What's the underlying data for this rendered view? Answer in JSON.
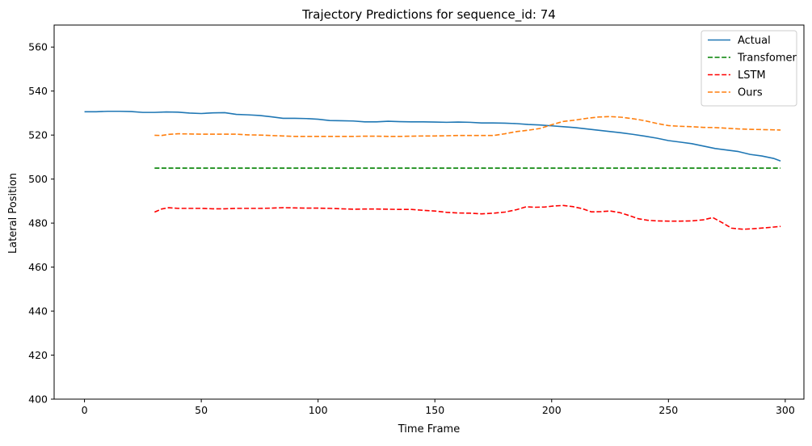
{
  "chart_data": {
    "type": "line",
    "title": "Trajectory Predictions for sequence_id: 74",
    "xlabel": "Time Frame",
    "ylabel": "Lateral Position",
    "xlim": [
      -13,
      308
    ],
    "ylim": [
      400,
      570
    ],
    "xticks": [
      0,
      50,
      100,
      150,
      200,
      250,
      300
    ],
    "yticks": [
      400,
      420,
      440,
      460,
      480,
      500,
      520,
      540,
      560
    ],
    "grid": false,
    "legend_position": "top-right",
    "series": [
      {
        "name": "Actual",
        "color": "#1f77b4",
        "style": "solid",
        "x": [
          0,
          5,
          10,
          15,
          20,
          25,
          30,
          35,
          40,
          45,
          50,
          55,
          60,
          65,
          70,
          75,
          80,
          85,
          90,
          95,
          100,
          105,
          110,
          115,
          120,
          125,
          130,
          135,
          140,
          145,
          150,
          155,
          160,
          165,
          170,
          175,
          180,
          185,
          190,
          195,
          200,
          205,
          210,
          215,
          220,
          225,
          230,
          235,
          240,
          245,
          250,
          255,
          260,
          265,
          270,
          275,
          280,
          285,
          290,
          295,
          298
        ],
        "y": [
          530.6,
          530.6,
          530.8,
          530.8,
          530.7,
          530.3,
          530.3,
          530.5,
          530.4,
          530.0,
          529.8,
          530.1,
          530.2,
          529.4,
          529.2,
          528.9,
          528.3,
          527.6,
          527.6,
          527.5,
          527.2,
          526.6,
          526.5,
          526.4,
          526.0,
          526.0,
          526.3,
          526.1,
          526.0,
          526.0,
          525.9,
          525.8,
          525.9,
          525.8,
          525.5,
          525.5,
          525.4,
          525.2,
          524.8,
          524.6,
          524.2,
          523.8,
          523.4,
          522.8,
          522.2,
          521.6,
          521.0,
          520.3,
          519.5,
          518.6,
          517.5,
          516.8,
          516.1,
          515.0,
          513.9,
          513.2,
          512.5,
          511.2,
          510.5,
          509.4,
          508.2
        ]
      },
      {
        "name": "Transfomer",
        "color": "#008000",
        "style": "dashed",
        "x": [
          30,
          298
        ],
        "y": [
          505.0,
          505.0
        ]
      },
      {
        "name": "LSTM",
        "color": "#ff0000",
        "style": "dashed",
        "x": [
          30,
          33,
          36,
          40,
          45,
          50,
          55,
          60,
          65,
          70,
          75,
          80,
          85,
          90,
          95,
          100,
          105,
          110,
          115,
          120,
          125,
          130,
          135,
          140,
          145,
          150,
          155,
          160,
          165,
          170,
          175,
          180,
          185,
          189,
          193,
          197,
          201,
          205,
          209,
          213,
          217,
          221,
          225,
          229,
          233,
          237,
          241,
          245,
          250,
          255,
          260,
          265,
          269,
          273,
          277,
          282,
          287,
          292,
          298
        ],
        "y": [
          485.0,
          486.4,
          487.0,
          486.7,
          486.7,
          486.7,
          486.5,
          486.5,
          486.7,
          486.7,
          486.7,
          486.8,
          487.0,
          486.9,
          486.8,
          486.8,
          486.7,
          486.5,
          486.3,
          486.4,
          486.4,
          486.3,
          486.2,
          486.2,
          485.8,
          485.5,
          484.9,
          484.6,
          484.5,
          484.2,
          484.5,
          485.0,
          486.1,
          487.4,
          487.2,
          487.3,
          487.8,
          488.0,
          487.5,
          486.6,
          485.1,
          485.2,
          485.5,
          484.8,
          483.5,
          482.0,
          481.3,
          481.0,
          480.9,
          480.9,
          481.0,
          481.5,
          482.5,
          480.2,
          477.7,
          477.2,
          477.5,
          477.9,
          478.5
        ]
      },
      {
        "name": "Ours",
        "color": "#ff7f0e",
        "style": "dashed",
        "x": [
          30,
          33,
          36,
          40,
          45,
          50,
          55,
          60,
          65,
          70,
          75,
          80,
          85,
          90,
          95,
          100,
          105,
          110,
          115,
          120,
          125,
          130,
          135,
          140,
          145,
          150,
          155,
          160,
          165,
          170,
          175,
          180,
          185,
          190,
          195,
          200,
          205,
          210,
          215,
          220,
          225,
          230,
          235,
          240,
          245,
          250,
          255,
          260,
          265,
          270,
          275,
          280,
          285,
          290,
          298
        ],
        "y": [
          519.9,
          519.8,
          520.3,
          520.6,
          520.5,
          520.4,
          520.4,
          520.4,
          520.4,
          520.1,
          520.0,
          519.8,
          519.6,
          519.4,
          519.4,
          519.4,
          519.4,
          519.4,
          519.4,
          519.5,
          519.5,
          519.4,
          519.4,
          519.5,
          519.6,
          519.6,
          519.7,
          519.8,
          519.8,
          519.8,
          519.8,
          520.6,
          521.6,
          522.2,
          523.0,
          524.7,
          526.2,
          526.8,
          527.6,
          528.2,
          528.4,
          528.1,
          527.4,
          526.5,
          525.3,
          524.3,
          524.0,
          523.8,
          523.5,
          523.4,
          523.1,
          522.8,
          522.6,
          522.5,
          522.3
        ]
      }
    ]
  }
}
